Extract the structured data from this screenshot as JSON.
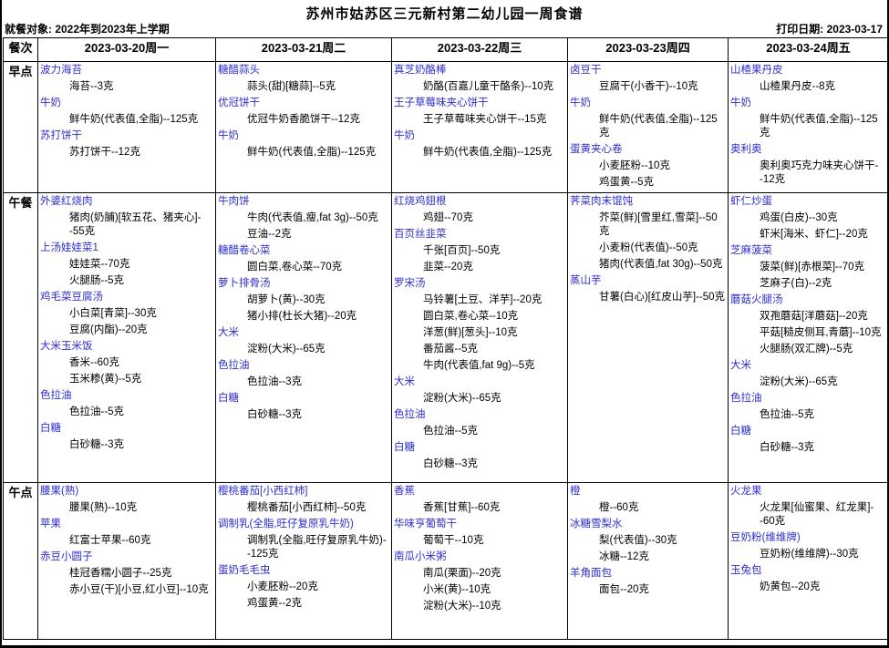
{
  "page": {
    "title": "苏州市姑苏区三元新村第二幼儿园一周食谱",
    "diners": "就餐对象: 2022年到2023年上学期",
    "print_date": "打印日期: 2023-03-17"
  },
  "colors": {
    "dish_name": "#2d2dd4",
    "body_text": "#000000",
    "border": "#000000"
  },
  "table": {
    "meal_header": "餐次",
    "day_headers": [
      "2023-03-20周一",
      "2023-03-21周二",
      "2023-03-22周三",
      "2023-03-23周四",
      "2023-03-24周五"
    ],
    "rows": [
      {
        "meal": "早点",
        "row_class": "row-breakfast",
        "cells": [
          [
            {
              "name": "波力海苔",
              "items": [
                "海苔--3克"
              ]
            },
            {
              "name": "牛奶",
              "items": [
                "鲜牛奶(代表值,全脂)--125克"
              ]
            },
            {
              "name": "苏打饼干",
              "items": [
                "苏打饼干--12克"
              ]
            }
          ],
          [
            {
              "name": "糖醋蒜头",
              "items": [
                "蒜头(甜)[糖蒜]--5克"
              ]
            },
            {
              "name": "优冠饼干",
              "items": [
                "优冠牛奶香脆饼干--12克"
              ]
            },
            {
              "name": "牛奶",
              "items": [
                "鲜牛奶(代表值,全脂)--125克"
              ]
            }
          ],
          [
            {
              "name": "真芝奶酪棒",
              "items": [
                "奶酪(百嘉儿童干酪条)--10克"
              ]
            },
            {
              "name": "王子草莓味夹心饼干",
              "items": [
                "王子草莓味夹心饼干--15克"
              ]
            },
            {
              "name": "牛奶",
              "items": [
                "鲜牛奶(代表值,全脂)--125克"
              ]
            }
          ],
          [
            {
              "name": "卤豆干",
              "items": [
                "豆腐干(小香干)--10克"
              ]
            },
            {
              "name": "牛奶",
              "items": [
                "鲜牛奶(代表值,全脂)--125克"
              ]
            },
            {
              "name": "蛋黄夹心卷",
              "items": [
                "小麦胚粉--10克",
                "鸡蛋黄--5克"
              ]
            }
          ],
          [
            {
              "name": "山楂果丹皮",
              "items": [
                "山楂果丹皮--8克"
              ]
            },
            {
              "name": "牛奶",
              "items": [
                "鲜牛奶(代表值,全脂)--125克"
              ]
            },
            {
              "name": "奥利奥",
              "items": [
                "奥利奥巧克力味夹心饼干--12克"
              ]
            }
          ]
        ]
      },
      {
        "meal": "午餐",
        "row_class": "row-lunch",
        "cells": [
          [
            {
              "name": "外婆红烧肉",
              "items": [
                "猪肉(奶脯)[软五花、猪夹心]--55克"
              ]
            },
            {
              "name": "上汤娃娃菜1",
              "items": [
                "娃娃菜--70克",
                "火腿肠--5克"
              ]
            },
            {
              "name": "鸡毛菜豆腐汤",
              "items": [
                "小白菜[青菜]--30克",
                "豆腐(内酯)--20克"
              ]
            },
            {
              "name": "大米玉米饭",
              "items": [
                "香米--60克",
                "玉米糁(黄)--5克"
              ]
            },
            {
              "name": "色拉油",
              "items": [
                "色拉油--5克"
              ]
            },
            {
              "name": "白糖",
              "items": [
                "白砂糖--3克"
              ]
            }
          ],
          [
            {
              "name": "牛肉饼",
              "items": [
                "牛肉(代表值,瘦,fat 3g)--50克",
                "豆油--2克"
              ]
            },
            {
              "name": "糖醋卷心菜",
              "items": [
                "圆白菜,卷心菜--70克"
              ]
            },
            {
              "name": "萝卜排骨汤",
              "items": [
                "胡萝卜(黄)--30克",
                "猪小排(杜长大猪)--20克"
              ]
            },
            {
              "name": "大米",
              "items": [
                "淀粉(大米)--65克"
              ]
            },
            {
              "name": "色拉油",
              "items": [
                "色拉油--3克"
              ]
            },
            {
              "name": "白糖",
              "items": [
                "白砂糖--3克"
              ]
            }
          ],
          [
            {
              "name": "红烧鸡翅根",
              "items": [
                "鸡翅--70克"
              ]
            },
            {
              "name": "百页丝韭菜",
              "items": [
                "千张[百页]--50克",
                "韭菜--20克"
              ]
            },
            {
              "name": "罗宋汤",
              "items": [
                "马铃薯[土豆、洋芋]--20克",
                "圆白菜,卷心菜--10克",
                "洋葱(鲜)[葱头]--10克",
                "番茄酱--5克",
                "牛肉(代表值,fat 9g)--5克"
              ]
            },
            {
              "name": "大米",
              "items": [
                "淀粉(大米)--65克"
              ]
            },
            {
              "name": "色拉油",
              "items": [
                "色拉油--5克"
              ]
            },
            {
              "name": "白糖",
              "items": [
                "白砂糖--3克"
              ]
            }
          ],
          [
            {
              "name": "荠菜肉末馄饨",
              "items": [
                "芥菜(鲜)[雪里红,雪菜]--50克",
                "小麦粉(代表值)--50克",
                "猪肉(代表值,fat 30g)--50克"
              ]
            },
            {
              "name": "蒸山芋",
              "items": [
                "甘薯(白心)[红皮山芋]--50克"
              ]
            }
          ],
          [
            {
              "name": "虾仁炒蛋",
              "items": [
                "鸡蛋(白皮)--30克",
                "虾米[海米、虾仁]--20克"
              ]
            },
            {
              "name": "芝麻菠菜",
              "items": [
                "菠菜(鲜)[赤根菜]--70克",
                "芝麻子(白)--2克"
              ]
            },
            {
              "name": "蘑菇火腿汤",
              "items": [
                "双孢蘑菇[洋蘑菇]--20克",
                "平菇[糙皮侧耳,青蘑]--10克",
                "火腿肠(双汇牌)--5克"
              ]
            },
            {
              "name": "大米",
              "items": [
                "淀粉(大米)--65克"
              ]
            },
            {
              "name": "色拉油",
              "items": [
                "色拉油--5克"
              ]
            },
            {
              "name": "白糖",
              "items": [
                "白砂糖--3克"
              ]
            }
          ]
        ]
      },
      {
        "meal": "午点",
        "row_class": "row-snack",
        "cells": [
          [
            {
              "name": "腰果(熟)",
              "items": [
                "腰果(熟)--10克"
              ]
            },
            {
              "name": "苹果",
              "items": [
                "红富士苹果--60克"
              ]
            },
            {
              "name": "赤豆小圆子",
              "items": [
                "桂冠香糯小圆子--25克",
                "赤小豆(干)[小豆,红小豆]--10克"
              ]
            }
          ],
          [
            {
              "name": "樱桃番茄[小西红柿]",
              "items": [
                "樱桃番茄[小西红柿]--50克"
              ]
            },
            {
              "name": "调制乳(全脂,旺仔复原乳牛奶)",
              "items": [
                "调制乳(全脂,旺仔复原乳牛奶)--125克"
              ]
            },
            {
              "name": "蛋奶毛毛虫",
              "items": [
                "小麦胚粉--20克",
                "鸡蛋黄--2克"
              ]
            }
          ],
          [
            {
              "name": "香蕉",
              "items": [
                "香蕉[甘蕉]--60克"
              ]
            },
            {
              "name": "华味亨葡萄干",
              "items": [
                "葡萄干--10克"
              ]
            },
            {
              "name": "南瓜小米粥",
              "items": [
                "南瓜(栗面)--20克",
                "小米(黄)--10克",
                "淀粉(大米)--10克"
              ]
            }
          ],
          [
            {
              "name": "橙",
              "items": [
                "橙--60克"
              ]
            },
            {
              "name": "冰糖雪梨水",
              "items": [
                "梨(代表值)--30克",
                "冰糖--12克"
              ]
            },
            {
              "name": "羊角面包",
              "items": [
                "面包--20克"
              ]
            }
          ],
          [
            {
              "name": "火龙果",
              "items": [
                "火龙果[仙蜜果、红龙果]--60克"
              ]
            },
            {
              "name": "豆奶粉(维维牌)",
              "items": [
                "豆奶粉(维维牌)--30克"
              ]
            },
            {
              "name": "玉兔包",
              "items": [
                "奶黄包--20克"
              ]
            }
          ]
        ]
      }
    ]
  }
}
